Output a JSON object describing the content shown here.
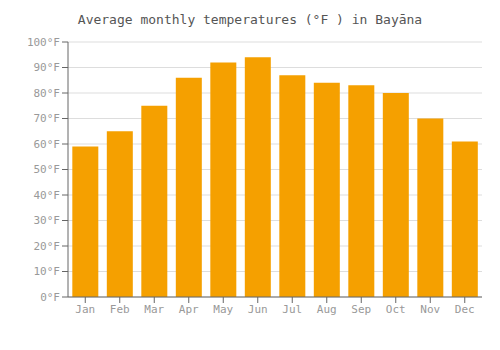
{
  "chart_data": {
    "type": "bar",
    "title": "Average monthly temperatures (°F ) in Bayāna",
    "categories": [
      "Jan",
      "Feb",
      "Mar",
      "Apr",
      "May",
      "Jun",
      "Jul",
      "Aug",
      "Sep",
      "Oct",
      "Nov",
      "Dec"
    ],
    "values": [
      59,
      65,
      75,
      86,
      92,
      94,
      87,
      84,
      83,
      80,
      70,
      61
    ],
    "color": "#F5A000",
    "ylim": [
      0,
      100
    ],
    "yticks": [
      {
        "value": 0,
        "label": "0°F"
      },
      {
        "value": 10,
        "label": "10°F"
      },
      {
        "value": 20,
        "label": "20°F"
      },
      {
        "value": 30,
        "label": "30°F"
      },
      {
        "value": 40,
        "label": "40°F"
      },
      {
        "value": 50,
        "label": "50°F"
      },
      {
        "value": 60,
        "label": "60°F"
      },
      {
        "value": 70,
        "label": "70°F"
      },
      {
        "value": 80,
        "label": "80°F"
      },
      {
        "value": 90,
        "label": "90°F"
      },
      {
        "value": 100,
        "label": "100°F"
      }
    ],
    "grid": true
  }
}
